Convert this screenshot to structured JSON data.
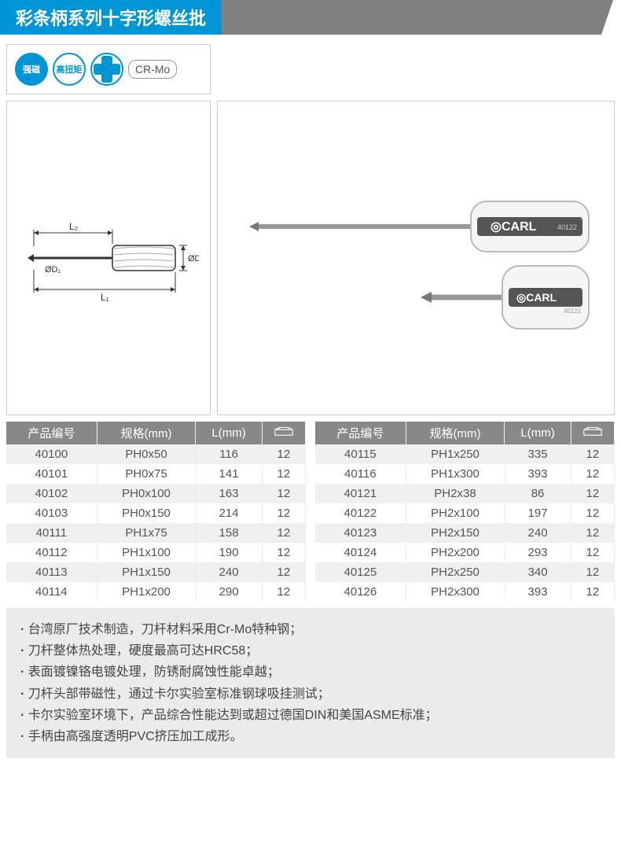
{
  "title": "彩条柄系列十字形螺丝批",
  "badges": {
    "b1": "强磁",
    "b2": "高扭矩",
    "crmo": "CR-Mo"
  },
  "diagram_labels": {
    "L2": "L₂",
    "D1": "ØD₁",
    "D2": "ØD₂",
    "L1": "L₁"
  },
  "brand": "CARL",
  "product_codes": {
    "p1": "40122",
    "p2": "40121"
  },
  "table_headers": {
    "code": "产品编号",
    "spec": "规格(mm)",
    "length": "L(mm)"
  },
  "left_rows": [
    {
      "code": "40100",
      "spec": "PH0x50",
      "l": "116",
      "q": "12"
    },
    {
      "code": "40101",
      "spec": "PH0x75",
      "l": "141",
      "q": "12"
    },
    {
      "code": "40102",
      "spec": "PH0x100",
      "l": "163",
      "q": "12"
    },
    {
      "code": "40103",
      "spec": "PH0x150",
      "l": "214",
      "q": "12"
    },
    {
      "code": "40111",
      "spec": "PH1x75",
      "l": "158",
      "q": "12"
    },
    {
      "code": "40112",
      "spec": "PH1x100",
      "l": "190",
      "q": "12"
    },
    {
      "code": "40113",
      "spec": "PH1x150",
      "l": "240",
      "q": "12"
    },
    {
      "code": "40114",
      "spec": "PH1x200",
      "l": "290",
      "q": "12"
    }
  ],
  "right_rows": [
    {
      "code": "40115",
      "spec": "PH1x250",
      "l": "335",
      "q": "12"
    },
    {
      "code": "40116",
      "spec": "PH1x300",
      "l": "393",
      "q": "12"
    },
    {
      "code": "40121",
      "spec": "PH2x38",
      "l": "86",
      "q": "12"
    },
    {
      "code": "40122",
      "spec": "PH2x100",
      "l": "197",
      "q": "12"
    },
    {
      "code": "40123",
      "spec": "PH2x150",
      "l": "240",
      "q": "12"
    },
    {
      "code": "40124",
      "spec": "PH2x200",
      "l": "293",
      "q": "12"
    },
    {
      "code": "40125",
      "spec": "PH2x250",
      "l": "340",
      "q": "12"
    },
    {
      "code": "40126",
      "spec": "PH2x300",
      "l": "393",
      "q": "12"
    }
  ],
  "notes": [
    "台湾原厂技术制造，刀杆材料采用Cr-Mo特种钢；",
    "刀杆整体热处理，硬度最高可达HRC58；",
    "表面镀镍铬电镀处理，防锈耐腐蚀性能卓越；",
    "刀杆头部带磁性，通过卡尔实验室标准钢球吸挂测试；",
    "卡尔实验室环境下，产品综合性能达到或超过德国DIN和美国ASME标准；",
    "手柄由高强度透明PVC挤压加工成形。"
  ],
  "colors": {
    "accent": "#0095d5",
    "header_gray": "#888888",
    "row_alt": "#f0f0f0",
    "notes_bg": "#ebebeb"
  }
}
